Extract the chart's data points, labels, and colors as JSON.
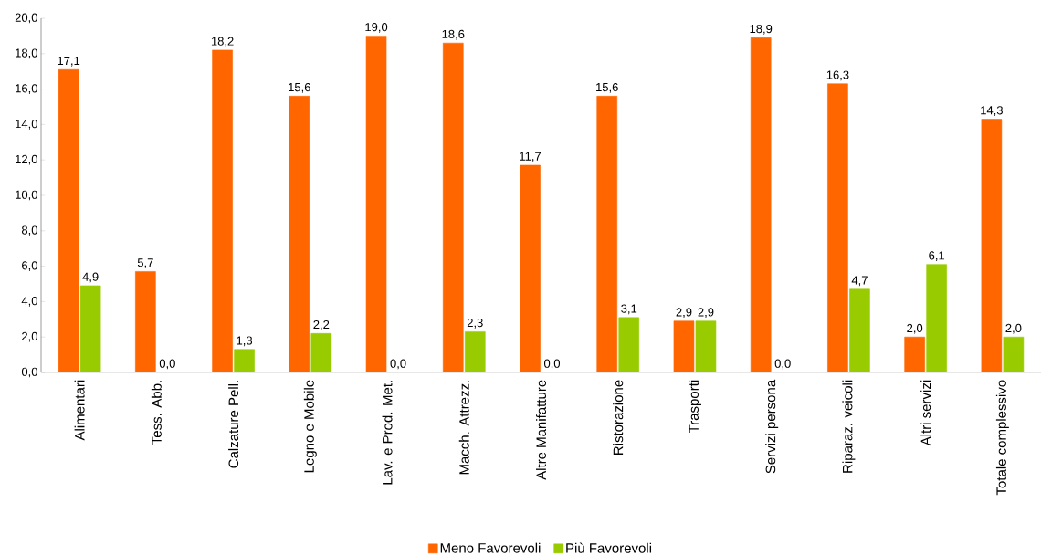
{
  "chart_data": {
    "type": "bar",
    "categories": [
      "Alimentari",
      "Tess. Abb.",
      "Calzature Pell.",
      "Legno e Mobile",
      "Lav.  e Prod. Met.",
      "Macch. Attrezz.",
      "Altre Manifatture",
      "Ristorazione",
      "Trasporti",
      "Servizi persona",
      "Riparaz. veicoli",
      "Altri servizi",
      "Totale complessivo"
    ],
    "series": [
      {
        "name": "Meno Favorevoli",
        "color": "#ff6600",
        "values": [
          17.1,
          5.7,
          18.2,
          15.6,
          19.0,
          18.6,
          11.7,
          15.6,
          2.9,
          18.9,
          16.3,
          2.0,
          14.3
        ],
        "value_labels": [
          "17,1",
          "5,7",
          "18,2",
          "15,6",
          "19,0",
          "18,6",
          "11,7",
          "15,6",
          "2,9",
          "18,9",
          "16,3",
          "2,0",
          "14,3"
        ]
      },
      {
        "name": "Più Favorevoli",
        "color": "#99cc00",
        "values": [
          4.9,
          0.0,
          1.3,
          2.2,
          0.0,
          2.3,
          0.0,
          3.1,
          2.9,
          0.0,
          4.7,
          6.1,
          2.0
        ],
        "value_labels": [
          "4,9",
          "0,0",
          "1,3",
          "2,2",
          "0,0",
          "2,3",
          "0,0",
          "3,1",
          "2,9",
          "0,0",
          "4,7",
          "6,1",
          "2,0"
        ]
      }
    ],
    "ylim": [
      0,
      20
    ],
    "yticks": [
      {
        "value": 0,
        "label": "0,0"
      },
      {
        "value": 2,
        "label": "2,0"
      },
      {
        "value": 4,
        "label": "4,0"
      },
      {
        "value": 6,
        "label": "6,0"
      },
      {
        "value": 8,
        "label": "8,0"
      },
      {
        "value": 10,
        "label": "10,0"
      },
      {
        "value": 12,
        "label": "12,0"
      },
      {
        "value": 14,
        "label": "14,0"
      },
      {
        "value": 16,
        "label": "16,0"
      },
      {
        "value": 18,
        "label": "18,0"
      },
      {
        "value": 20,
        "label": "20,0"
      }
    ],
    "legend": "bottom"
  }
}
